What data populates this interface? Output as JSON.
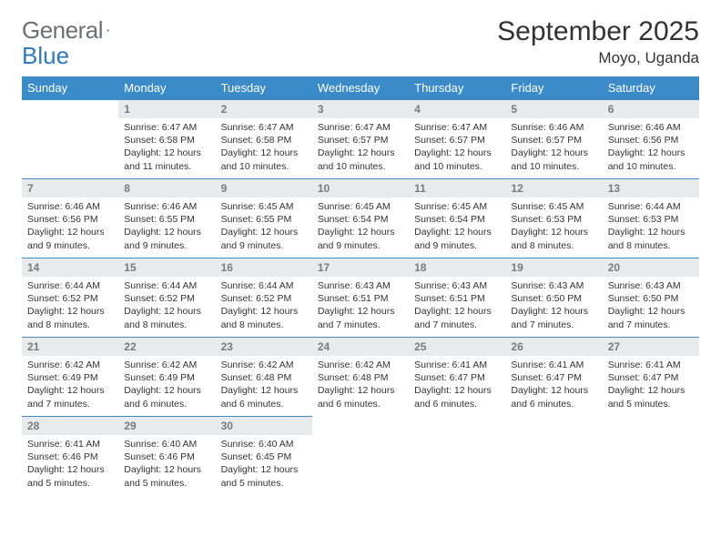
{
  "brand": {
    "word1": "General",
    "word2": "Blue"
  },
  "colors": {
    "header_bg": "#3b8bc9",
    "header_text": "#ffffff",
    "daynum_bg": "#e9eaeb",
    "daynum_text": "#7a7a7a",
    "border": "#3b8bc9",
    "logo_gray": "#6b7075",
    "logo_blue": "#2d7abf",
    "body_text": "#333333"
  },
  "title": "September 2025",
  "location": "Moyo, Uganda",
  "weekdays": [
    "Sunday",
    "Monday",
    "Tuesday",
    "Wednesday",
    "Thursday",
    "Friday",
    "Saturday"
  ],
  "weeks": [
    [
      null,
      {
        "n": "1",
        "sr": "6:47 AM",
        "ss": "6:58 PM",
        "dl": "12 hours and 11 minutes."
      },
      {
        "n": "2",
        "sr": "6:47 AM",
        "ss": "6:58 PM",
        "dl": "12 hours and 10 minutes."
      },
      {
        "n": "3",
        "sr": "6:47 AM",
        "ss": "6:57 PM",
        "dl": "12 hours and 10 minutes."
      },
      {
        "n": "4",
        "sr": "6:47 AM",
        "ss": "6:57 PM",
        "dl": "12 hours and 10 minutes."
      },
      {
        "n": "5",
        "sr": "6:46 AM",
        "ss": "6:57 PM",
        "dl": "12 hours and 10 minutes."
      },
      {
        "n": "6",
        "sr": "6:46 AM",
        "ss": "6:56 PM",
        "dl": "12 hours and 10 minutes."
      }
    ],
    [
      {
        "n": "7",
        "sr": "6:46 AM",
        "ss": "6:56 PM",
        "dl": "12 hours and 9 minutes."
      },
      {
        "n": "8",
        "sr": "6:46 AM",
        "ss": "6:55 PM",
        "dl": "12 hours and 9 minutes."
      },
      {
        "n": "9",
        "sr": "6:45 AM",
        "ss": "6:55 PM",
        "dl": "12 hours and 9 minutes."
      },
      {
        "n": "10",
        "sr": "6:45 AM",
        "ss": "6:54 PM",
        "dl": "12 hours and 9 minutes."
      },
      {
        "n": "11",
        "sr": "6:45 AM",
        "ss": "6:54 PM",
        "dl": "12 hours and 9 minutes."
      },
      {
        "n": "12",
        "sr": "6:45 AM",
        "ss": "6:53 PM",
        "dl": "12 hours and 8 minutes."
      },
      {
        "n": "13",
        "sr": "6:44 AM",
        "ss": "6:53 PM",
        "dl": "12 hours and 8 minutes."
      }
    ],
    [
      {
        "n": "14",
        "sr": "6:44 AM",
        "ss": "6:52 PM",
        "dl": "12 hours and 8 minutes."
      },
      {
        "n": "15",
        "sr": "6:44 AM",
        "ss": "6:52 PM",
        "dl": "12 hours and 8 minutes."
      },
      {
        "n": "16",
        "sr": "6:44 AM",
        "ss": "6:52 PM",
        "dl": "12 hours and 8 minutes."
      },
      {
        "n": "17",
        "sr": "6:43 AM",
        "ss": "6:51 PM",
        "dl": "12 hours and 7 minutes."
      },
      {
        "n": "18",
        "sr": "6:43 AM",
        "ss": "6:51 PM",
        "dl": "12 hours and 7 minutes."
      },
      {
        "n": "19",
        "sr": "6:43 AM",
        "ss": "6:50 PM",
        "dl": "12 hours and 7 minutes."
      },
      {
        "n": "20",
        "sr": "6:43 AM",
        "ss": "6:50 PM",
        "dl": "12 hours and 7 minutes."
      }
    ],
    [
      {
        "n": "21",
        "sr": "6:42 AM",
        "ss": "6:49 PM",
        "dl": "12 hours and 7 minutes."
      },
      {
        "n": "22",
        "sr": "6:42 AM",
        "ss": "6:49 PM",
        "dl": "12 hours and 6 minutes."
      },
      {
        "n": "23",
        "sr": "6:42 AM",
        "ss": "6:48 PM",
        "dl": "12 hours and 6 minutes."
      },
      {
        "n": "24",
        "sr": "6:42 AM",
        "ss": "6:48 PM",
        "dl": "12 hours and 6 minutes."
      },
      {
        "n": "25",
        "sr": "6:41 AM",
        "ss": "6:47 PM",
        "dl": "12 hours and 6 minutes."
      },
      {
        "n": "26",
        "sr": "6:41 AM",
        "ss": "6:47 PM",
        "dl": "12 hours and 6 minutes."
      },
      {
        "n": "27",
        "sr": "6:41 AM",
        "ss": "6:47 PM",
        "dl": "12 hours and 5 minutes."
      }
    ],
    [
      {
        "n": "28",
        "sr": "6:41 AM",
        "ss": "6:46 PM",
        "dl": "12 hours and 5 minutes."
      },
      {
        "n": "29",
        "sr": "6:40 AM",
        "ss": "6:46 PM",
        "dl": "12 hours and 5 minutes."
      },
      {
        "n": "30",
        "sr": "6:40 AM",
        "ss": "6:45 PM",
        "dl": "12 hours and 5 minutes."
      },
      null,
      null,
      null,
      null
    ]
  ],
  "labels": {
    "sunrise": "Sunrise:",
    "sunset": "Sunset:",
    "daylight": "Daylight:"
  }
}
